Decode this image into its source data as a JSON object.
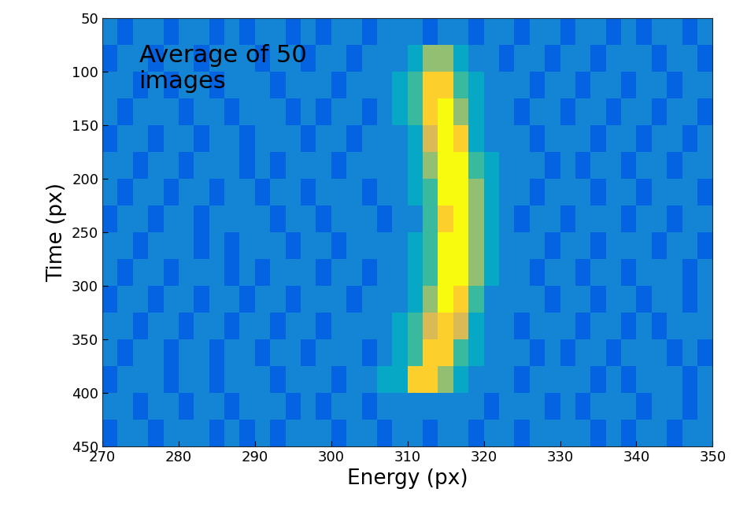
{
  "chart_data": {
    "type": "heatmap",
    "annotation": "Average of 50\nimages",
    "xlabel": "Energy (px)",
    "ylabel": "Time (px)",
    "xlim": [
      270,
      350
    ],
    "xticks": [
      270,
      280,
      290,
      300,
      310,
      320,
      330,
      340,
      350
    ],
    "ylim": [
      450,
      50
    ],
    "yticks": [
      50,
      100,
      150,
      200,
      250,
      300,
      350,
      400,
      450
    ],
    "zlim": [
      1,
      9
    ],
    "x_edges": [
      270,
      272,
      274,
      276,
      278,
      280,
      282,
      284,
      286,
      288,
      290,
      292,
      294,
      296,
      298,
      300,
      302,
      304,
      306,
      308,
      310,
      312,
      314,
      316,
      318,
      320,
      322,
      324,
      326,
      328,
      330,
      332,
      334,
      336,
      338,
      340,
      342,
      344,
      346,
      348,
      350
    ],
    "y_edges": [
      50,
      75,
      100,
      125,
      150,
      175,
      200,
      225,
      250,
      275,
      300,
      325,
      350,
      375,
      400,
      425,
      450
    ],
    "cells": [
      [
        3,
        2,
        3,
        3,
        2,
        3,
        3,
        2,
        3,
        2,
        3,
        3,
        2,
        3,
        2,
        3,
        3,
        2,
        3,
        3,
        3,
        2,
        3,
        3,
        2,
        3,
        3,
        2,
        3,
        3,
        2,
        3,
        3,
        2,
        3,
        2,
        3,
        3,
        2,
        3
      ],
      [
        2,
        3,
        3,
        2,
        3,
        3,
        2,
        3,
        3,
        3,
        2,
        3,
        3,
        2,
        3,
        3,
        2,
        3,
        3,
        3,
        4,
        6,
        6,
        4,
        3,
        3,
        2,
        3,
        3,
        2,
        3,
        3,
        2,
        3,
        3,
        3,
        2,
        3,
        3,
        2
      ],
      [
        3,
        3,
        2,
        3,
        2,
        3,
        3,
        2,
        3,
        3,
        3,
        2,
        3,
        3,
        3,
        2,
        3,
        3,
        3,
        4,
        5,
        8,
        8,
        5,
        4,
        3,
        3,
        3,
        2,
        3,
        3,
        2,
        3,
        3,
        2,
        3,
        3,
        2,
        3,
        3
      ],
      [
        3,
        2,
        3,
        3,
        3,
        2,
        3,
        3,
        2,
        3,
        3,
        3,
        2,
        3,
        2,
        3,
        3,
        2,
        3,
        4,
        5,
        8,
        9,
        6,
        4,
        3,
        3,
        2,
        3,
        3,
        2,
        3,
        3,
        2,
        3,
        3,
        2,
        3,
        3,
        2
      ],
      [
        2,
        3,
        3,
        2,
        3,
        3,
        2,
        3,
        3,
        2,
        3,
        3,
        3,
        2,
        3,
        3,
        2,
        3,
        3,
        3,
        4,
        7,
        9,
        8,
        4,
        3,
        3,
        3,
        2,
        3,
        3,
        3,
        2,
        3,
        3,
        2,
        3,
        3,
        2,
        3
      ],
      [
        3,
        3,
        2,
        3,
        3,
        2,
        3,
        3,
        3,
        2,
        3,
        2,
        3,
        3,
        3,
        2,
        3,
        3,
        3,
        3,
        4,
        6,
        9,
        9,
        5,
        4,
        3,
        3,
        3,
        2,
        3,
        2,
        3,
        3,
        2,
        3,
        3,
        2,
        3,
        3
      ],
      [
        3,
        2,
        3,
        3,
        2,
        3,
        3,
        2,
        3,
        3,
        2,
        3,
        3,
        2,
        3,
        3,
        3,
        2,
        3,
        3,
        4,
        5,
        9,
        9,
        6,
        4,
        3,
        3,
        2,
        3,
        3,
        3,
        2,
        3,
        3,
        2,
        3,
        3,
        3,
        2
      ],
      [
        2,
        3,
        3,
        2,
        3,
        3,
        2,
        3,
        3,
        3,
        3,
        2,
        3,
        3,
        2,
        3,
        3,
        3,
        2,
        3,
        3,
        5,
        8,
        9,
        6,
        4,
        3,
        2,
        3,
        3,
        2,
        3,
        3,
        3,
        2,
        3,
        3,
        2,
        3,
        3
      ],
      [
        3,
        3,
        2,
        3,
        3,
        3,
        2,
        3,
        2,
        3,
        3,
        3,
        2,
        3,
        3,
        2,
        3,
        3,
        3,
        3,
        4,
        5,
        9,
        9,
        6,
        4,
        3,
        3,
        3,
        2,
        3,
        3,
        2,
        3,
        3,
        3,
        2,
        3,
        3,
        2
      ],
      [
        3,
        2,
        3,
        3,
        2,
        3,
        3,
        3,
        2,
        3,
        2,
        3,
        3,
        3,
        2,
        3,
        3,
        2,
        3,
        3,
        4,
        5,
        9,
        9,
        6,
        4,
        3,
        3,
        2,
        3,
        3,
        2,
        3,
        3,
        2,
        3,
        3,
        3,
        2,
        3
      ],
      [
        2,
        3,
        3,
        2,
        3,
        3,
        2,
        3,
        3,
        2,
        3,
        3,
        2,
        3,
        3,
        3,
        2,
        3,
        3,
        3,
        4,
        6,
        9,
        8,
        5,
        3,
        3,
        3,
        3,
        2,
        3,
        3,
        2,
        3,
        3,
        2,
        3,
        3,
        2,
        3
      ],
      [
        3,
        3,
        2,
        3,
        3,
        2,
        3,
        3,
        2,
        3,
        3,
        2,
        3,
        3,
        2,
        3,
        3,
        3,
        3,
        4,
        5,
        7,
        8,
        7,
        4,
        3,
        3,
        2,
        3,
        3,
        3,
        2,
        3,
        3,
        2,
        3,
        2,
        3,
        3,
        3
      ],
      [
        3,
        2,
        3,
        3,
        2,
        3,
        3,
        2,
        3,
        3,
        2,
        3,
        3,
        2,
        3,
        3,
        3,
        2,
        3,
        4,
        5,
        8,
        8,
        5,
        4,
        3,
        3,
        3,
        2,
        3,
        2,
        3,
        3,
        2,
        3,
        3,
        3,
        2,
        3,
        2
      ],
      [
        2,
        3,
        3,
        3,
        2,
        3,
        3,
        2,
        3,
        3,
        3,
        2,
        3,
        3,
        3,
        2,
        3,
        3,
        4,
        4,
        8,
        8,
        6,
        4,
        3,
        3,
        3,
        2,
        3,
        3,
        3,
        3,
        2,
        3,
        2,
        3,
        3,
        3,
        2,
        3
      ],
      [
        3,
        3,
        2,
        3,
        3,
        2,
        3,
        3,
        2,
        3,
        3,
        3,
        2,
        3,
        2,
        3,
        3,
        2,
        3,
        3,
        3,
        3,
        3,
        3,
        3,
        2,
        3,
        3,
        3,
        2,
        3,
        2,
        3,
        3,
        3,
        2,
        3,
        3,
        2,
        3
      ],
      [
        2,
        3,
        3,
        2,
        3,
        3,
        3,
        2,
        3,
        2,
        3,
        2,
        3,
        3,
        3,
        2,
        3,
        3,
        2,
        3,
        3,
        2,
        3,
        3,
        2,
        3,
        3,
        2,
        3,
        3,
        3,
        3,
        2,
        3,
        2,
        3,
        3,
        2,
        3,
        3
      ]
    ]
  }
}
